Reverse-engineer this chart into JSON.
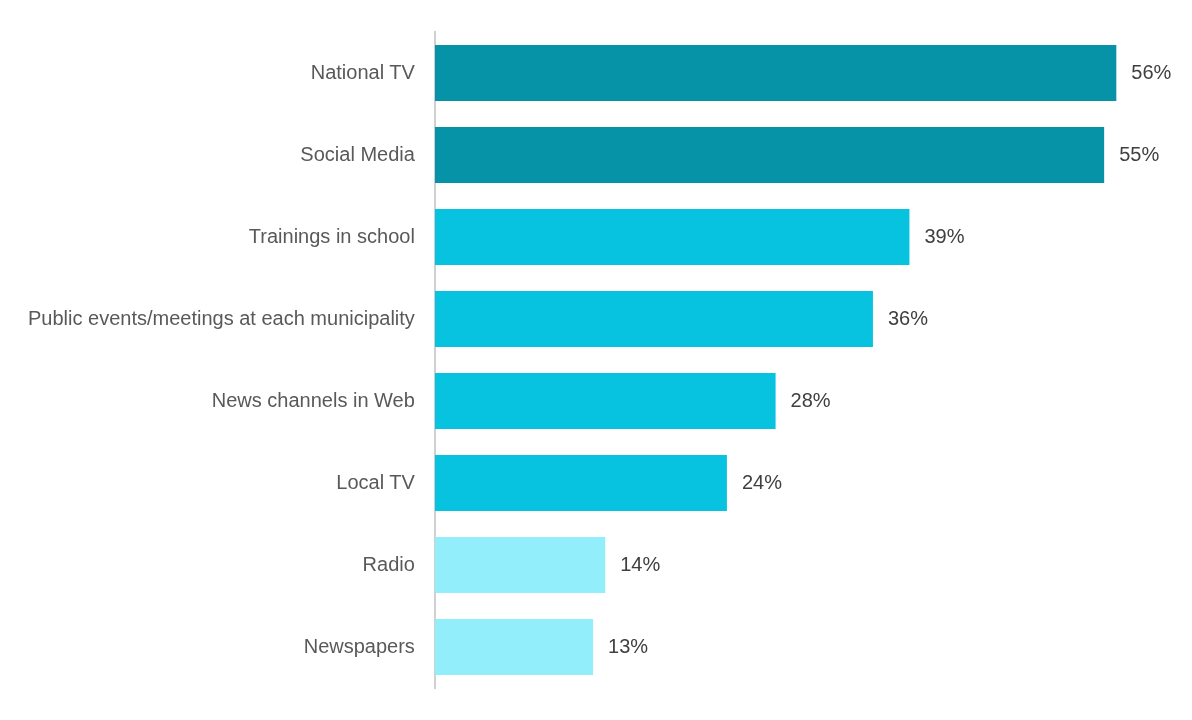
{
  "chart_data": {
    "type": "bar",
    "orientation": "horizontal",
    "categories": [
      "National TV",
      "Social Media",
      "Trainings in school",
      "Public events/meetings at each municipality",
      "News channels in Web",
      "Local TV",
      "Radio",
      "Newspapers"
    ],
    "values": [
      56,
      55,
      39,
      36,
      28,
      24,
      14,
      13
    ],
    "value_labels": [
      "56%",
      "55%",
      "39%",
      "36%",
      "28%",
      "24%",
      "14%",
      "13%"
    ],
    "colors": [
      "#0693a8",
      "#0693a8",
      "#07c3e0",
      "#07c3e0",
      "#07c3e0",
      "#07c3e0",
      "#91eefa",
      "#91eefa"
    ],
    "legend": false
  }
}
